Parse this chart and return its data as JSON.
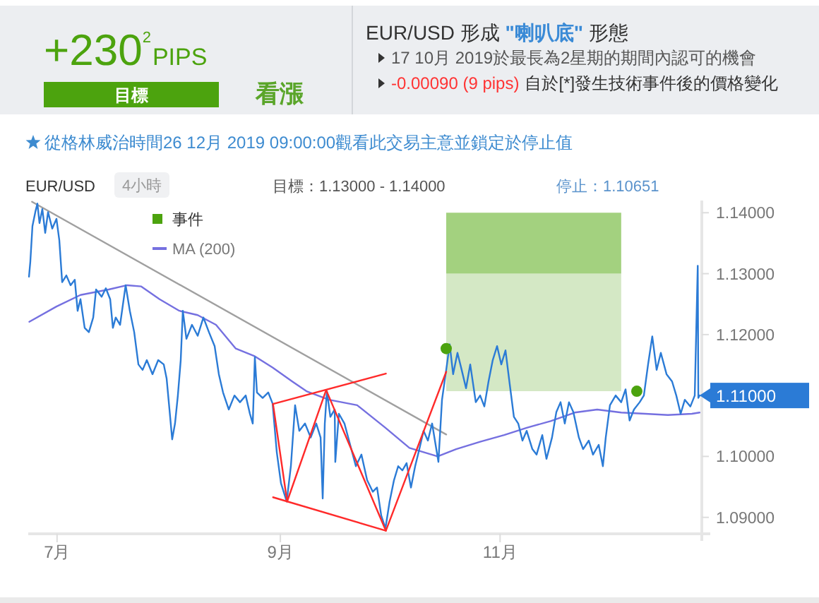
{
  "chart_data": {
    "type": "line",
    "title": "EUR/USD 形成 \"喇叭底\" 形態",
    "annotations": [
      "+230$^{2}$PIPS",
      "目標",
      "看漲",
      "17 10月 2019於最長為2星期的期間內認可的機會",
      "-0.00090 (9 pips)",
      "自於[*]發生技術事件後的價格變化",
      "從格林威治時間26 12月 2019 09:00:00觀看此交易主意並鎖定於停止值",
      "EUR/USD",
      "4小時",
      "目標：1.13000 - 1.14000",
      "停止：1.10651",
      {
        "text": "1.11000",
        "x": "2019-12-26T09:00",
        "y": 1.11
      }
    ],
    "series": [
      {
        "type": "area",
        "color": "#d4e8c5",
        "x": [
          "2019-10-17T01:00",
          "2019-12-04T15:00"
        ],
        "values": [
          null,
          null
        ],
        "lower": [
          1.1107,
          1.1107
        ],
        "upper": [
          1.13,
          1.13
        ]
      },
      {
        "type": "area",
        "color": "#a3d17f",
        "x": [
          "2019-10-17T01:00",
          "2019-12-04T15:00"
        ],
        "values": [
          null,
          null
        ],
        "lower": [
          1.13,
          1.13
        ],
        "upper": [
          1.14,
          1.14
        ]
      },
      {
        "type": "scatter",
        "name": "事件",
        "color": "#4ca30e",
        "marker": "circle",
        "x": [
          "2019-10-17T01:00",
          "2019-12-08T23:00"
        ],
        "values": [
          1.1177,
          1.1107
        ]
      },
      {
        "name": "MA (200)",
        "color": "#7570e0",
        "x": [
          "2019-06-23T07:00",
          "2019-06-30T20:00",
          "2019-07-07T12:00",
          "2019-07-15T08:00",
          "2019-07-20T11:00",
          "2019-07-24T09:00",
          "2019-07-29T11:00",
          "2019-08-03T23:00",
          "2019-08-09T01:00",
          "2019-08-14T03:00",
          "2019-08-19T15:00",
          "2019-08-24T17:00",
          "2019-08-29T20:00",
          "2019-09-04T07:00",
          "2019-09-08T06:00",
          "2019-09-14T12:00",
          "2019-09-22T08:00",
          "2019-09-30T04:00",
          "2019-10-06T20:00",
          "2019-10-10T18:00",
          "2019-10-14T16:00",
          "2019-10-19T19:00",
          "2019-10-26T11:00",
          "2019-11-02T03:00",
          "2019-11-08T09:00",
          "2019-11-15T01:00",
          "2019-11-21T17:00",
          "2019-11-27T23:00",
          "2019-12-04T15:00",
          "2019-12-11T07:00",
          "2019-12-17T14:00",
          "2019-12-24T06:00",
          "2019-12-26T09:00"
        ],
        "values": [
          1.1221,
          1.1246,
          1.1265,
          1.1274,
          1.1281,
          1.1279,
          1.1258,
          1.1239,
          1.1232,
          1.1216,
          1.1177,
          1.1165,
          1.1146,
          1.1123,
          1.1107,
          1.1093,
          1.1084,
          1.1047,
          1.1014,
          1.1007,
          1.1,
          1.1012,
          1.1024,
          1.1035,
          1.1047,
          1.1058,
          1.1072,
          1.1077,
          1.1072,
          1.107,
          1.1068,
          1.107,
          1.1072
        ]
      },
      {
        "color": "#a0a0a0",
        "x": [
          "2019-06-24T01:00",
          "2019-10-17T01:00"
        ],
        "values": [
          1.1418,
          1.1036
        ]
      },
      {
        "color": "#2b7bd6",
        "x": [
          "2019-06-23T05:00",
          "2019-06-23T14:00",
          "2019-06-24T04:00",
          "2019-06-24T23:00",
          "2019-06-25T13:00",
          "2019-06-26T03:00",
          "2019-06-26T22:00",
          "2019-06-27T17:00",
          "2019-06-28T12:00",
          "2019-06-29T16:00",
          "2019-06-30T20:00",
          "2019-07-01T15:00",
          "2019-07-02T10:00",
          "2019-07-03T14:00",
          "2019-07-04T18:00",
          "2019-07-05T22:00",
          "2019-07-06T17:00",
          "2019-07-07T12:00",
          "2019-07-08T16:00",
          "2019-07-09T20:00",
          "2019-07-11T01:00",
          "2019-07-11T20:00",
          "2019-07-13T09:00",
          "2019-07-14T13:00",
          "2019-07-15T18:00",
          "2019-07-16T12:00",
          "2019-07-17T07:00",
          "2019-07-18T12:00",
          "2019-07-20T01:00",
          "2019-07-21T05:00",
          "2019-07-22T10:00",
          "2019-07-23T14:00",
          "2019-07-24T18:00",
          "2019-07-25T22:00",
          "2019-07-27T12:00",
          "2019-07-29T02:00",
          "2019-07-30T15:00",
          "2019-07-31T10:00",
          "2019-08-01T05:00",
          "2019-08-01T23:00",
          "2019-08-02T18:00",
          "2019-08-03T13:00",
          "2019-08-04T08:00",
          "2019-08-04T22:00",
          "2019-08-05T22:00",
          "2019-08-07T11:00",
          "2019-08-09T01:00",
          "2019-08-10T15:00",
          "2019-08-12T04:00",
          "2019-08-13T18:00",
          "2019-08-14T22:00",
          "2019-08-16T02:00",
          "2019-08-17T16:00",
          "2019-08-19T06:00",
          "2019-08-20T19:00",
          "2019-08-22T09:00",
          "2019-08-23T13:00",
          "2019-08-24T08:00",
          "2019-08-24T22:00",
          "2019-08-25T12:00",
          "2019-08-27T02:00",
          "2019-08-28T15:00",
          "2019-08-29T20:00",
          "2019-08-31T00:00",
          "2019-09-01T04:00",
          "2019-09-02T18:00",
          "2019-09-03T22:00",
          "2019-09-05T02:00",
          "2019-09-06T06:00",
          "2019-09-07T20:00",
          "2019-09-09T10:00",
          "2019-09-10T23:00",
          "2019-09-12T04:00",
          "2019-09-12T18:00",
          "2019-09-13T08:00",
          "2019-09-13T22:00",
          "2019-09-14T21:00",
          "2019-09-16T02:00",
          "2019-09-16T06:00",
          "2019-09-17T06:00",
          "2019-09-18T19:00",
          "2019-09-20T09:00",
          "2019-09-21T23:00",
          "2019-09-23T12:00",
          "2019-09-25T02:00",
          "2019-09-26T16:00",
          "2019-09-27T20:00",
          "2019-09-29T00:00",
          "2019-09-30T04:00",
          "2019-10-01T08:00",
          "2019-10-02T13:00",
          "2019-10-03T17:00",
          "2019-10-04T21:00",
          "2019-10-06T01:00",
          "2019-10-07T06:00",
          "2019-10-08T10:00",
          "2019-10-09T14:00",
          "2019-10-10T18:00",
          "2019-10-11T23:00",
          "2019-10-13T03:00",
          "2019-10-14T07:00",
          "2019-10-14T21:00",
          "2019-10-15T21:00",
          "2019-10-17T01:00",
          "2019-10-18T00:00",
          "2019-10-18T23:00",
          "2019-10-20T04:00",
          "2019-10-21T08:00",
          "2019-10-22T13:00",
          "2019-10-23T17:00",
          "2019-10-25T06:00",
          "2019-10-26T11:00",
          "2019-10-27T15:00",
          "2019-10-28T19:00",
          "2019-10-29T23:00",
          "2019-10-31T04:00",
          "2019-11-01T08:00",
          "2019-11-02T12:00",
          "2019-11-03T16:00",
          "2019-11-04T20:00",
          "2019-11-06T01:00",
          "2019-11-07T05:00",
          "2019-11-08T09:00",
          "2019-11-09T23:00",
          "2019-11-11T03:00",
          "2019-11-12T17:00",
          "2019-11-13T21:00",
          "2019-11-15T10:00",
          "2019-11-16T15:00",
          "2019-11-17T19:00",
          "2019-11-18T23:00",
          "2019-11-20T03:00",
          "2019-11-21T08:00",
          "2019-11-22T21:00",
          "2019-11-24T01:00",
          "2019-11-25T15:00",
          "2019-11-26T19:00",
          "2019-11-28T09:00",
          "2019-11-29T13:00",
          "2019-11-30T08:00",
          "2019-12-01T12:00",
          "2019-12-03T02:00",
          "2019-12-04T15:00",
          "2019-12-05T20:00",
          "2019-12-06T23:00",
          "2019-12-08T04:00",
          "2019-12-09T18:00",
          "2019-12-10T22:00",
          "2019-12-12T02:00",
          "2019-12-13T06:00",
          "2019-12-14T11:00",
          "2019-12-15T15:00",
          "2019-12-17T05:00",
          "2019-12-18T18:00",
          "2019-12-19T22:00",
          "2019-12-21T03:00",
          "2019-12-22T07:00",
          "2019-12-23T20:00",
          "2019-12-25T01:00",
          "2019-12-25T21:00",
          "2019-12-26T01:00",
          "2019-12-26T09:00"
        ],
        "values": [
          1.1295,
          1.132,
          1.1378,
          1.1401,
          1.1415,
          1.1383,
          1.1406,
          1.1367,
          1.1401,
          1.1374,
          1.139,
          1.1355,
          1.1286,
          1.1297,
          1.1281,
          1.129,
          1.1239,
          1.1258,
          1.1211,
          1.1204,
          1.1228,
          1.1274,
          1.1262,
          1.1276,
          1.1258,
          1.1211,
          1.1228,
          1.1216,
          1.1281,
          1.1239,
          1.1204,
          1.1151,
          1.1142,
          1.1158,
          1.1135,
          1.1158,
          1.1151,
          1.1128,
          1.1077,
          1.1028,
          1.1054,
          1.11,
          1.1158,
          1.1239,
          1.1193,
          1.1216,
          1.1198,
          1.1228,
          1.1204,
          1.1181,
          1.1135,
          1.1105,
          1.1077,
          1.11,
          1.1089,
          1.11,
          1.107,
          1.1054,
          1.1163,
          1.1105,
          1.1096,
          1.1105,
          1.1087,
          1.1007,
          1.0956,
          1.0926,
          1.0984,
          1.1084,
          1.1042,
          1.1054,
          1.1031,
          1.1054,
          1.1031,
          1.0931,
          1.1054,
          1.1107,
          1.1065,
          1.1077,
          1.0991,
          1.107,
          1.1054,
          1.1019,
          1.0984,
          1.1003,
          1.0961,
          1.0942,
          1.0949,
          1.0903,
          1.0882,
          1.0926,
          1.0961,
          1.0984,
          1.0977,
          1.0989,
          1.0949,
          1.0984,
          1.1012,
          1.1042,
          1.1026,
          1.1054,
          1.1012,
          1.0991,
          1.1093,
          1.1142,
          1.1184,
          1.1135,
          1.117,
          1.1142,
          1.1112,
          1.1151,
          1.1089,
          1.11,
          1.1082,
          1.1123,
          1.1158,
          1.1181,
          1.1151,
          1.1174,
          1.1119,
          1.1065,
          1.1054,
          1.1026,
          1.1042,
          1.1012,
          1.1003,
          1.1035,
          1.0996,
          1.1031,
          1.1073,
          1.1089,
          1.1054,
          1.1089,
          1.1073,
          1.1031,
          1.1012,
          1.1026,
          1.1003,
          1.1019,
          1.0984,
          1.1031,
          1.1084,
          1.11,
          1.1089,
          1.111,
          1.1059,
          1.1077,
          1.1089,
          1.11,
          1.1151,
          1.1197,
          1.1142,
          1.117,
          1.1135,
          1.1123,
          1.11,
          1.107,
          1.1093,
          1.1082,
          1.11,
          1.1313,
          1.1096,
          1.11
        ]
      },
      {
        "color": "#ff2a2a",
        "x": [
          "2019-08-29T23:00",
          "2019-09-30T07:00"
        ],
        "values": [
          1.1086,
          1.1136
        ]
      },
      {
        "color": "#ff2a2a",
        "x": [
          "2019-08-29T23:00",
          "2019-09-30T07:00"
        ],
        "values": [
          1.0933,
          1.0878
        ]
      },
      {
        "color": "#ff2a2a",
        "x": [
          "2019-08-29T23:00",
          "2019-09-02T21:00",
          "2019-09-13T17:00",
          "2019-09-30T07:00",
          "2019-10-17T01:00"
        ],
        "values": [
          1.1086,
          1.0926,
          1.1109,
          1.0878,
          1.1139
        ]
      }
    ],
    "xlim": [
      "2019-06-23",
      "2019-12-27"
    ],
    "xticks": [
      {
        "value": "2019-07-01",
        "label": "7月"
      },
      {
        "value": "2019-09-01",
        "label": "9月"
      },
      {
        "value": "2019-11-01",
        "label": "11月"
      }
    ],
    "ylim": [
      1.0873,
      1.142
    ],
    "yticks": [
      {
        "value": 1.09,
        "label": "1.09000"
      },
      {
        "value": 1.1,
        "label": "1.10000"
      },
      {
        "value": 1.12,
        "label": "1.12000"
      },
      {
        "value": 1.13,
        "label": "1.13000"
      },
      {
        "value": 1.14,
        "label": "1.14000"
      }
    ],
    "legend": "top left"
  }
}
